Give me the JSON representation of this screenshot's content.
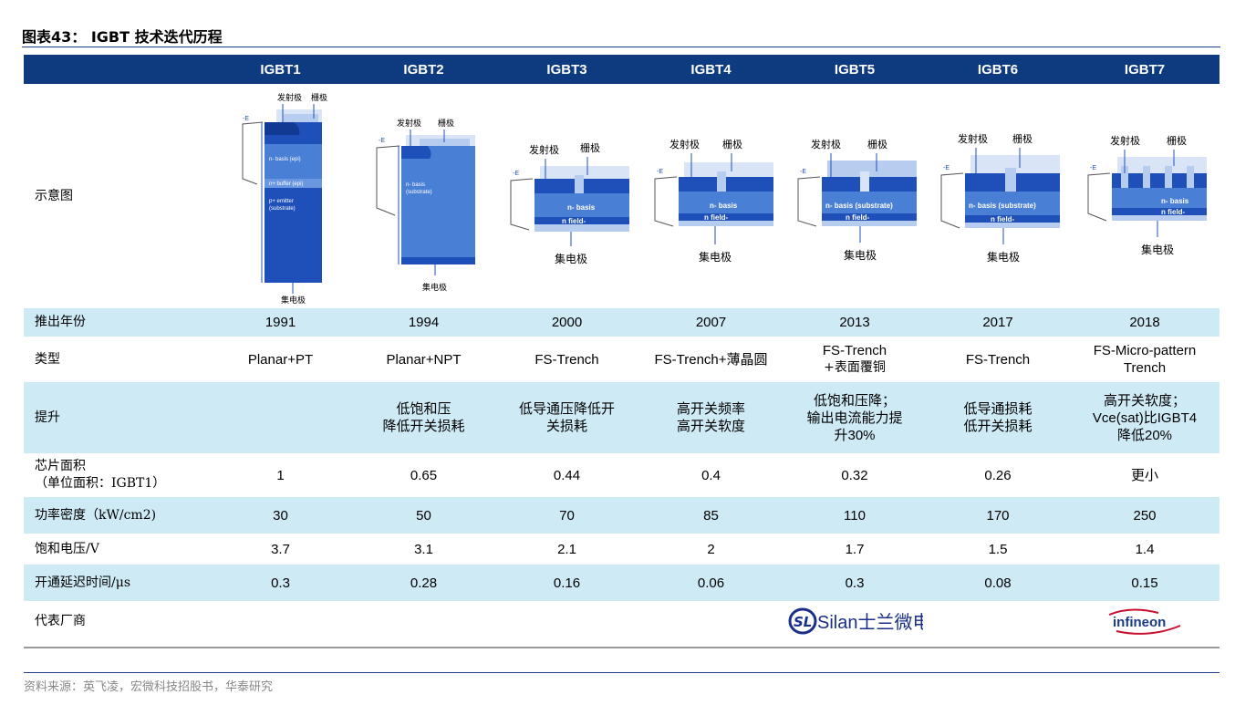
{
  "title": "图表43： IGBT 技术迭代历程",
  "columns": [
    "IGBT1",
    "IGBT2",
    "IGBT3",
    "IGBT4",
    "IGBT5",
    "IGBT6",
    "IGBT7"
  ],
  "diagram": {
    "row_label": "示意图",
    "emitter": "发射极",
    "gate": "栅极",
    "collector": "集电极",
    "e_mark": "-E",
    "d1_epi": "n- basis (epi)",
    "d1_buffer": "n+ buffer (epi)",
    "d1_emitter1": "p+ emitter",
    "d1_emitter2": "(substrate)",
    "d2_basis1": "n- basis",
    "d2_basis2": "(substrate)",
    "basis": "n- basis",
    "basis_sub": "n- basis (substrate)",
    "field": "n field-"
  },
  "rows": {
    "year": {
      "label": "推出年份",
      "values": [
        "1991",
        "1994",
        "2000",
        "2007",
        "2013",
        "2017",
        "2018"
      ]
    },
    "type": {
      "label": "类型",
      "values": [
        [
          "Planar+PT"
        ],
        [
          "Planar+NPT"
        ],
        [
          "FS-Trench"
        ],
        [
          "FS-Trench+薄晶圆"
        ],
        [
          "FS-Trench",
          "+表面覆铜"
        ],
        [
          "FS-Trench"
        ],
        [
          "FS-Micro-pattern",
          "Trench"
        ]
      ]
    },
    "improve": {
      "label": "提升",
      "values": [
        [],
        [
          "低饱和压",
          "降低开关损耗"
        ],
        [
          "低导通压降低开",
          "关损耗"
        ],
        [
          "高开关频率",
          "高开关软度"
        ],
        [
          "低饱和压降；",
          "输出电流能力提",
          "升30%"
        ],
        [
          "低导通损耗",
          "低开关损耗"
        ],
        [
          "高开关软度；",
          "Vce(sat)比IGBT4",
          "降低20%"
        ]
      ]
    },
    "area": {
      "label1": "芯片面积",
      "label2": "（单位面积：IGBT1）",
      "values": [
        "1",
        "0.65",
        "0.44",
        "0.4",
        "0.32",
        "0.26",
        "更小"
      ]
    },
    "power": {
      "label": "功率密度（kW/cm2)",
      "values": [
        "30",
        "50",
        "70",
        "85",
        "110",
        "170",
        "250"
      ]
    },
    "saturation": {
      "label": "饱和电压/V",
      "values": [
        "3.7",
        "3.1",
        "2.1",
        "2",
        "1.7",
        "1.5",
        "1.4"
      ]
    },
    "delay": {
      "label": "开通延迟时间/μs",
      "values": [
        "0.3",
        "0.28",
        "0.16",
        "0.06",
        "0.3",
        "0.08",
        "0.15"
      ]
    },
    "maker": {
      "label": "代表厂商",
      "silan_text": "Silan士兰微电子",
      "infineon_text": "infineon"
    }
  },
  "source": "资料来源：英飞凌，宏微科技招股书，华泰研究",
  "colors": {
    "header": "#0e3a80",
    "band": "#cdeaf5",
    "chip_dark": "#1f4fb8",
    "chip_mid": "#4a7fd6",
    "chip_light": "#b7cdf0"
  }
}
